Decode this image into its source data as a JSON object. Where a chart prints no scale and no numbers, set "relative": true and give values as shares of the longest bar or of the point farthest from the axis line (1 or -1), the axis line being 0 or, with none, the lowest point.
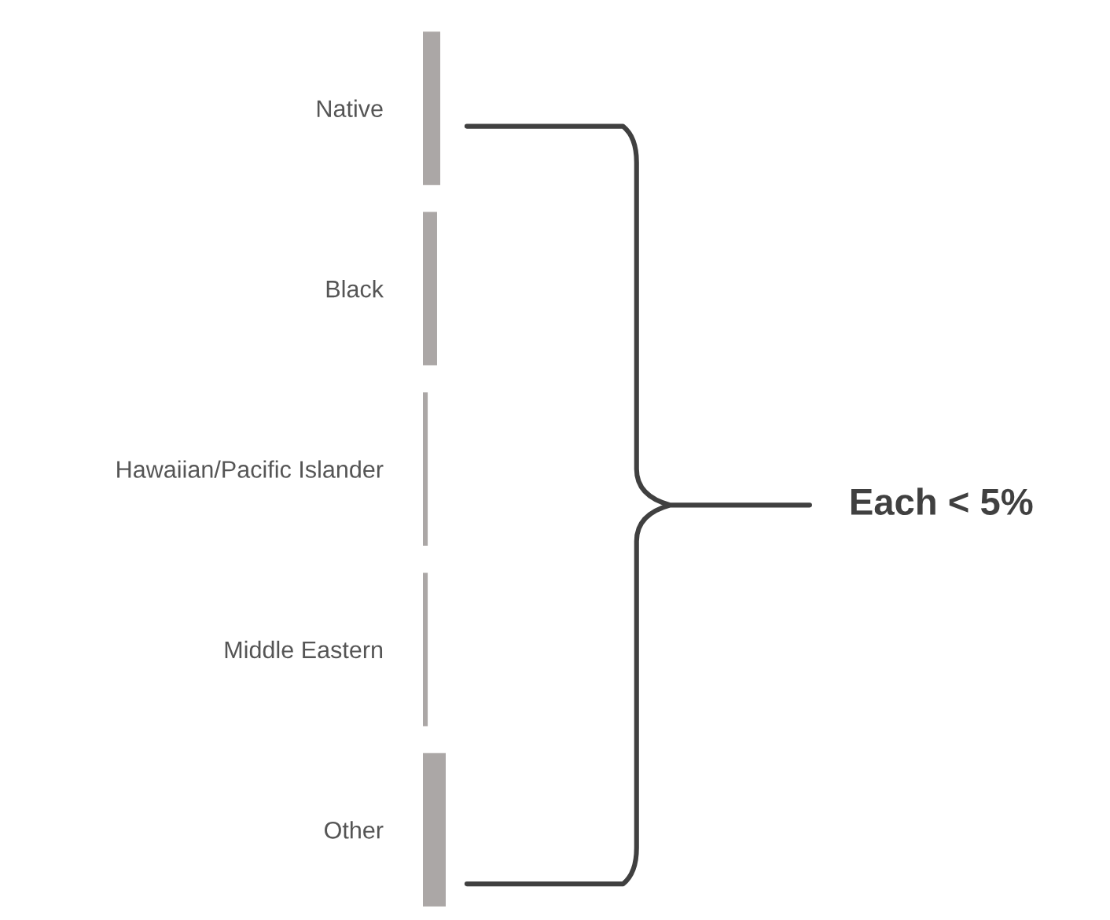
{
  "chart_data": {
    "type": "bar",
    "orientation": "horizontal",
    "relative": true,
    "categories": [
      "Native",
      "Black",
      "Hawaiian/Pacific Islander",
      "Middle Eastern",
      "Other"
    ],
    "values": [
      0.76,
      0.62,
      0.21,
      0.21,
      1
    ],
    "color": "#aba7a6",
    "annotations": [
      "Each < 5%"
    ]
  }
}
